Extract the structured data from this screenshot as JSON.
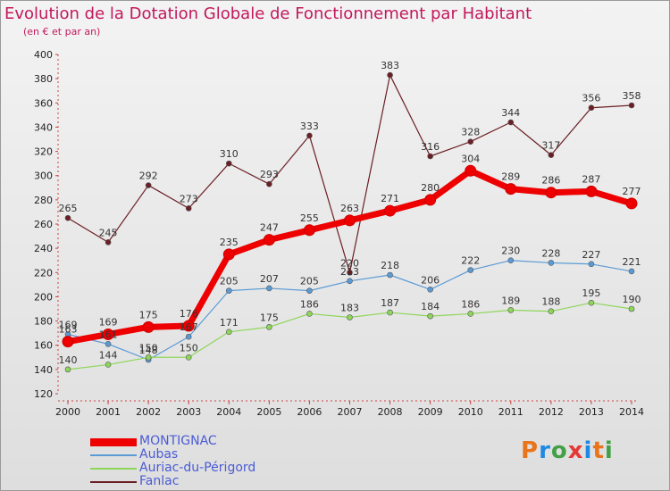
{
  "header": {
    "title": "Evolution de la Dotation Globale de Fonctionnement par Habitant",
    "subtitle": "(en € et par an)"
  },
  "logo": {
    "text": "Proxiti",
    "colors": [
      "#e8741c",
      "#1e88e5",
      "#43a047",
      "#e53935",
      "#1e88e5",
      "#e8741c",
      "#43a047"
    ]
  },
  "chart_data": {
    "type": "line",
    "x": [
      2000,
      2001,
      2002,
      2003,
      2004,
      2005,
      2006,
      2007,
      2008,
      2009,
      2010,
      2011,
      2012,
      2013,
      2014
    ],
    "ylim": [
      120,
      400
    ],
    "yticks": [
      120,
      140,
      160,
      180,
      200,
      220,
      240,
      260,
      280,
      300,
      320,
      340,
      360,
      380,
      400
    ],
    "grid": false,
    "legend_position": "bottom-left",
    "series": [
      {
        "name": "MONTIGNAC",
        "color": "#ee0000",
        "values": [
          163,
          169,
          175,
          176,
          235,
          247,
          255,
          263,
          271,
          280,
          304,
          289,
          286,
          287,
          277
        ]
      },
      {
        "name": "Aubas",
        "color": "#5b9bd5",
        "values": [
          169,
          161,
          148,
          167,
          205,
          207,
          205,
          213,
          218,
          206,
          222,
          230,
          228,
          227,
          221
        ]
      },
      {
        "name": "Auriac-du-Périgord",
        "color": "#8ed65a",
        "values": [
          140,
          144,
          150,
          150,
          171,
          175,
          186,
          183,
          187,
          184,
          186,
          189,
          188,
          195,
          190
        ]
      },
      {
        "name": "Fanlac",
        "color": "#6b1f24",
        "values": [
          265,
          245,
          292,
          273,
          310,
          293,
          333,
          220,
          383,
          316,
          328,
          344,
          317,
          356,
          358
        ]
      }
    ]
  }
}
